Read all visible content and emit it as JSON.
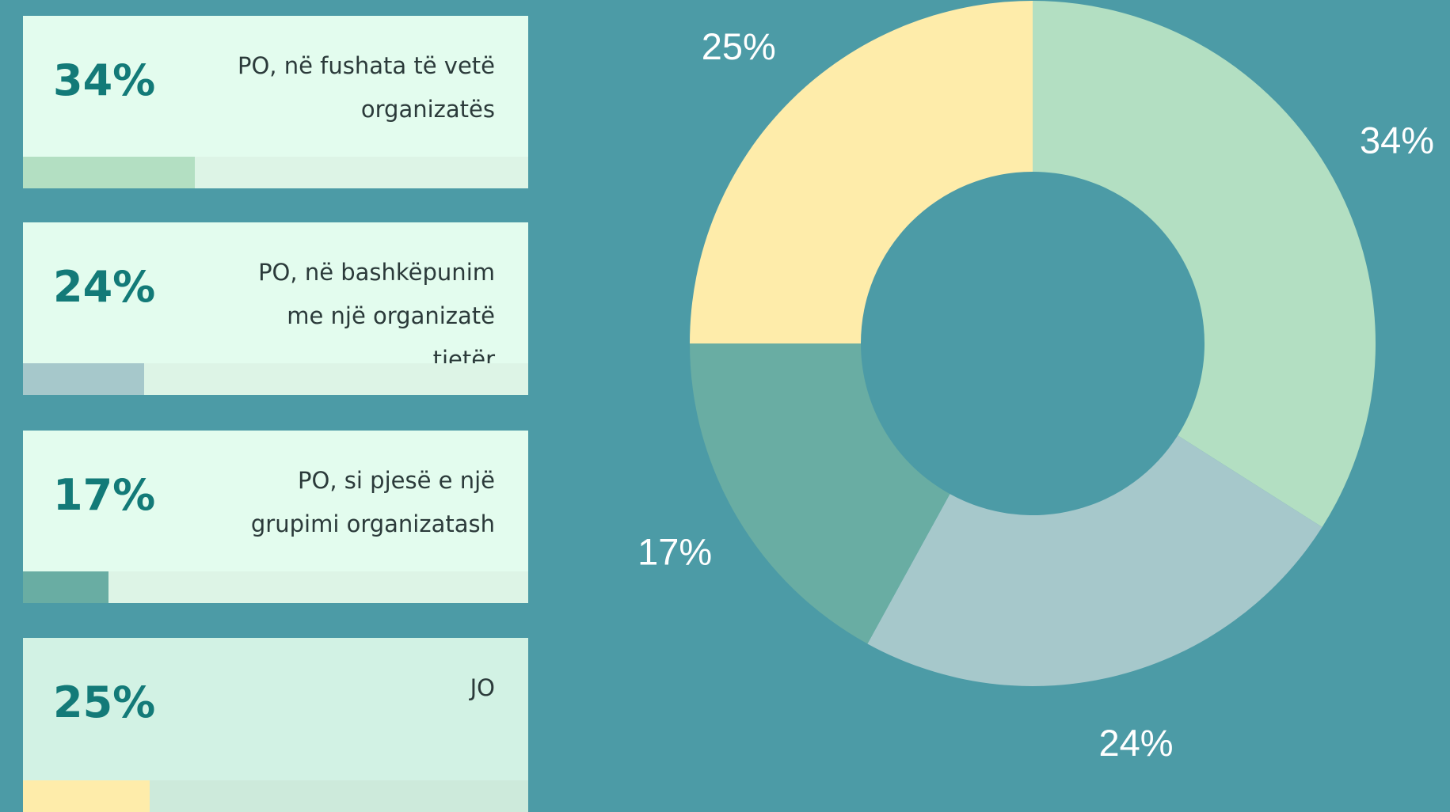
{
  "chart_data": {
    "type": "donut",
    "categories": [
      "PO, në fushata të vetë organizatës",
      "PO, në bashkëpunim me një organizatë tjetër",
      "PO, si pjesë e një grupimi organizatash",
      "JO"
    ],
    "values": [
      34,
      24,
      17,
      25
    ],
    "value_labels": [
      "34%",
      "24%",
      "17%",
      "25%"
    ],
    "colors": [
      "#b3dfc2",
      "#a6c8cb",
      "#69ada3",
      "#feecaa"
    ]
  }
}
